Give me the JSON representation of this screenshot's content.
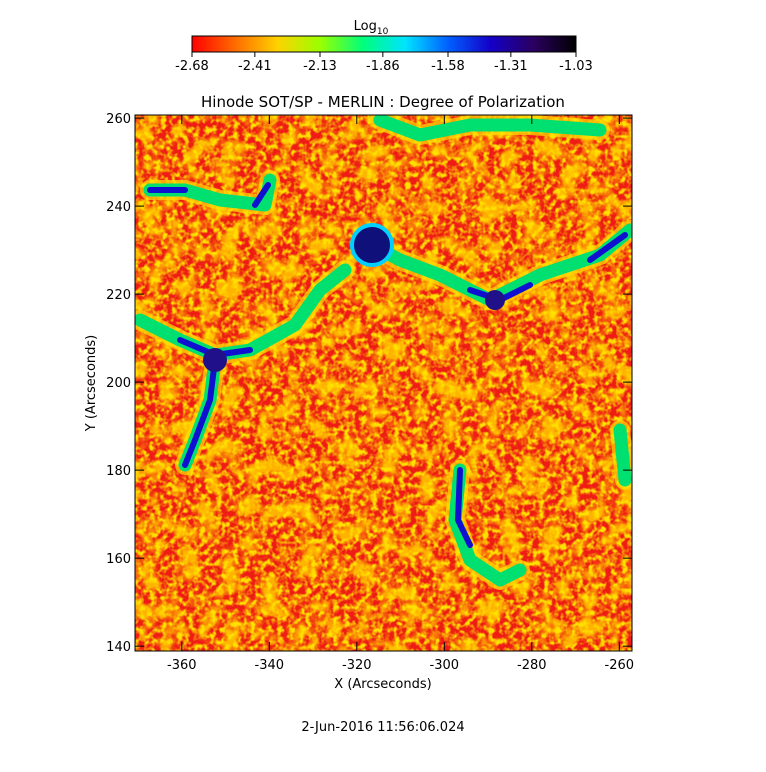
{
  "chart_data": {
    "type": "image",
    "title": "Hinode SOT/SP - MERLIN : Degree of Polarization",
    "x_label": "X (Arcseconds)",
    "y_label": "Y (Arcseconds)",
    "xlim": [
      -370.7,
      -257.1
    ],
    "xticks": [
      -360,
      -340,
      -320,
      -300,
      -280,
      -260
    ],
    "ylim": [
      138.9,
      260.7
    ],
    "yticks": [
      140,
      160,
      180,
      200,
      220,
      240,
      260
    ],
    "colorbar": {
      "label": "Log",
      "label_sub": "10",
      "lim": [
        -2.68,
        -1.03
      ],
      "ticks": [
        -2.68,
        -2.41,
        -2.13,
        -1.86,
        -1.58,
        -1.31,
        -1.03
      ],
      "colormap": [
        "#ff0000",
        "#ff6a00",
        "#ffd200",
        "#9bff00",
        "#00ff7a",
        "#00e4ff",
        "#0060ff",
        "#1400c8",
        "#2a0060",
        "#000000"
      ]
    },
    "timestamp": "2-Jun-2016 11:56:06.024"
  }
}
